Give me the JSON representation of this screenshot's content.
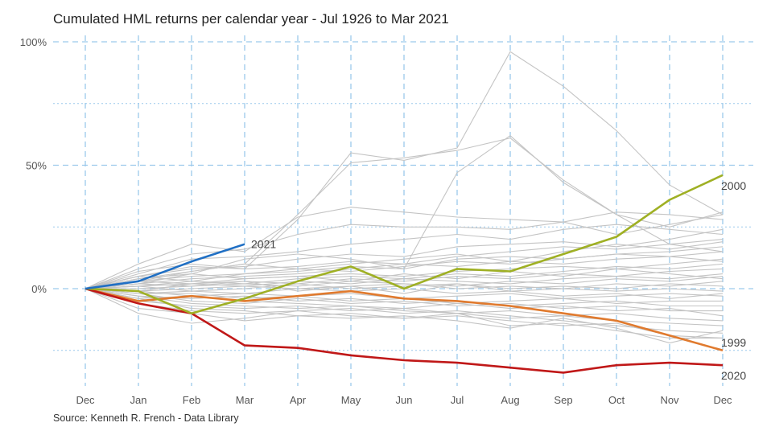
{
  "title": "Cumulated HML returns per calendar year - Jul 1926 to Mar 2021",
  "source": "Source: Kenneth R. French - Data Library",
  "colors": {
    "background_series": "#c4c4c4",
    "grid": "#9cc9ec",
    "s2021": "#1f6fc4",
    "s2000": "#9fb024",
    "s1999": "#e07a2e",
    "s2020": "#c01818"
  },
  "chart_data": {
    "type": "line",
    "title": "Cumulated HML returns per calendar year - Jul 1926 to Mar 2021",
    "xlabel": "",
    "ylabel": "",
    "categories": [
      "Dec",
      "Jan",
      "Feb",
      "Mar",
      "Apr",
      "May",
      "Jun",
      "Jul",
      "Aug",
      "Sep",
      "Oct",
      "Nov",
      "Dec"
    ],
    "ylim": [
      -0.4,
      1.02
    ],
    "yticks": [
      0,
      0.5,
      1.0
    ],
    "ytick_labels": [
      "0%",
      "50%",
      "100%"
    ],
    "grid": true,
    "highlighted_series": [
      {
        "name": "2021",
        "color": "#1f6fc4",
        "values": [
          0,
          0.03,
          0.11,
          0.18
        ]
      },
      {
        "name": "2000",
        "color": "#9fb024",
        "values": [
          0,
          -0.01,
          -0.1,
          -0.04,
          0.03,
          0.09,
          0.0,
          0.08,
          0.07,
          0.14,
          0.21,
          0.36,
          0.46
        ]
      },
      {
        "name": "1999",
        "color": "#e07a2e",
        "values": [
          0,
          -0.05,
          -0.03,
          -0.05,
          -0.03,
          -0.01,
          -0.04,
          -0.05,
          -0.07,
          -0.1,
          -0.13,
          -0.19,
          -0.25
        ]
      },
      {
        "name": "2020",
        "color": "#c01818",
        "values": [
          0,
          -0.06,
          -0.1,
          -0.23,
          -0.24,
          -0.27,
          -0.29,
          -0.3,
          -0.32,
          -0.34,
          -0.31,
          -0.3,
          -0.31
        ]
      }
    ],
    "background_series": [
      {
        "values": [
          0,
          0.05,
          0.09,
          0.08,
          0.28,
          0.55,
          0.52,
          0.57,
          0.96,
          0.82,
          0.64,
          0.42,
          0.3
        ]
      },
      {
        "values": [
          0,
          0.03,
          0.07,
          0.1,
          0.3,
          0.51,
          0.53,
          0.56,
          0.61,
          0.44,
          0.3,
          0.25,
          0.31
        ]
      },
      {
        "values": [
          0,
          0.04,
          0.06,
          0.12,
          0.14,
          0.12,
          0.08,
          0.47,
          0.62,
          0.43,
          0.3,
          0.18,
          0.15
        ]
      },
      {
        "values": [
          0,
          0.1,
          0.18,
          0.15,
          0.29,
          0.33,
          0.31,
          0.29,
          0.28,
          0.27,
          0.31,
          0.3,
          0.28
        ]
      },
      {
        "values": [
          0,
          0.08,
          0.14,
          0.16,
          0.22,
          0.26,
          0.25,
          0.25,
          0.24,
          0.27,
          0.22,
          0.26,
          0.3
        ]
      },
      {
        "values": [
          0,
          0.06,
          0.12,
          0.13,
          0.15,
          0.18,
          0.2,
          0.22,
          0.2,
          0.24,
          0.26,
          0.24,
          0.22
        ]
      },
      {
        "values": [
          0,
          0.05,
          0.08,
          0.09,
          0.12,
          0.14,
          0.13,
          0.17,
          0.18,
          0.19,
          0.17,
          0.2,
          0.24
        ]
      },
      {
        "values": [
          0,
          0.04,
          0.07,
          0.1,
          0.08,
          0.1,
          0.12,
          0.14,
          0.11,
          0.15,
          0.18,
          0.16,
          0.19
        ]
      },
      {
        "values": [
          0,
          0.03,
          0.05,
          0.06,
          0.07,
          0.09,
          0.08,
          0.12,
          0.13,
          0.12,
          0.14,
          0.15,
          0.17
        ]
      },
      {
        "values": [
          0,
          0.02,
          0.04,
          0.05,
          0.06,
          0.08,
          0.1,
          0.09,
          0.11,
          0.1,
          0.12,
          0.13,
          0.15
        ]
      },
      {
        "values": [
          0,
          0.03,
          0.02,
          0.04,
          0.05,
          0.06,
          0.05,
          0.07,
          0.08,
          0.09,
          0.08,
          0.1,
          0.12
        ]
      },
      {
        "values": [
          0,
          0.01,
          0.03,
          0.02,
          0.04,
          0.05,
          0.04,
          0.06,
          0.05,
          0.07,
          0.09,
          0.08,
          0.1
        ]
      },
      {
        "values": [
          0,
          0.02,
          0.01,
          0.03,
          0.02,
          0.04,
          0.03,
          0.05,
          0.04,
          0.06,
          0.05,
          0.07,
          0.08
        ]
      },
      {
        "values": [
          0,
          0.01,
          0.02,
          0.01,
          0.03,
          0.02,
          0.04,
          0.03,
          0.02,
          0.04,
          0.05,
          0.04,
          0.06
        ]
      },
      {
        "values": [
          0,
          0.0,
          0.01,
          0.02,
          0.01,
          0.03,
          0.02,
          0.01,
          0.03,
          0.02,
          0.04,
          0.03,
          0.05
        ]
      },
      {
        "values": [
          0,
          -0.01,
          0.0,
          0.01,
          0.0,
          0.01,
          0.02,
          0.0,
          0.01,
          0.0,
          0.02,
          0.01,
          0.03
        ]
      },
      {
        "values": [
          0,
          0.01,
          -0.01,
          0.0,
          0.02,
          0.0,
          0.01,
          0.02,
          0.0,
          0.01,
          0.0,
          0.02,
          0.01
        ]
      },
      {
        "values": [
          0,
          -0.02,
          -0.01,
          -0.02,
          0.0,
          -0.01,
          0.0,
          -0.02,
          -0.01,
          0.0,
          -0.01,
          0.0,
          -0.01
        ]
      },
      {
        "values": [
          0,
          -0.01,
          -0.03,
          -0.02,
          -0.03,
          -0.02,
          -0.04,
          -0.03,
          -0.02,
          -0.04,
          -0.03,
          -0.02,
          -0.03
        ]
      },
      {
        "values": [
          0,
          -0.02,
          -0.02,
          -0.04,
          -0.03,
          -0.05,
          -0.04,
          -0.06,
          -0.05,
          -0.04,
          -0.06,
          -0.05,
          -0.05
        ]
      },
      {
        "values": [
          0,
          -0.03,
          -0.04,
          -0.03,
          -0.05,
          -0.04,
          -0.06,
          -0.05,
          -0.07,
          -0.06,
          -0.05,
          -0.07,
          -0.07
        ]
      },
      {
        "values": [
          0,
          -0.02,
          -0.05,
          -0.06,
          -0.04,
          -0.06,
          -0.05,
          -0.07,
          -0.06,
          -0.08,
          -0.07,
          -0.09,
          -0.09
        ]
      },
      {
        "values": [
          0,
          -0.04,
          -0.03,
          -0.05,
          -0.06,
          -0.07,
          -0.08,
          -0.06,
          -0.08,
          -0.07,
          -0.09,
          -0.08,
          -0.11
        ]
      },
      {
        "values": [
          0,
          -0.03,
          -0.06,
          -0.07,
          -0.08,
          -0.07,
          -0.09,
          -0.1,
          -0.09,
          -0.11,
          -0.1,
          -0.12,
          -0.13
        ]
      },
      {
        "values": [
          0,
          -0.05,
          -0.07,
          -0.08,
          -0.07,
          -0.09,
          -0.08,
          -0.1,
          -0.12,
          -0.11,
          -0.13,
          -0.14,
          -0.15
        ]
      },
      {
        "values": [
          0,
          -0.06,
          -0.09,
          -0.1,
          -0.09,
          -0.08,
          -0.1,
          -0.09,
          -0.11,
          -0.13,
          -0.15,
          -0.17,
          -0.18
        ]
      },
      {
        "values": [
          0,
          -0.04,
          -0.08,
          -0.09,
          -0.11,
          -0.1,
          -0.12,
          -0.11,
          -0.13,
          -0.15,
          -0.14,
          -0.19,
          -0.2
        ]
      },
      {
        "values": [
          0,
          -0.08,
          -0.1,
          -0.13,
          -0.11,
          -0.12,
          -0.11,
          -0.13,
          -0.16,
          -0.12,
          -0.16,
          -0.22,
          -0.17
        ]
      },
      {
        "values": [
          0,
          -0.1,
          -0.14,
          -0.12,
          -0.09,
          -0.11,
          -0.12,
          -0.1,
          -0.15,
          -0.14,
          -0.17,
          -0.2,
          -0.2
        ]
      },
      {
        "values": [
          0,
          0.07,
          0.1,
          0.08,
          0.09,
          0.11,
          0.1,
          0.13,
          0.15,
          0.17,
          0.16,
          0.18,
          0.2
        ]
      },
      {
        "values": [
          0,
          0.05,
          0.03,
          0.06,
          0.08,
          0.07,
          0.09,
          0.11,
          0.1,
          0.12,
          0.14,
          0.13,
          0.11
        ]
      },
      {
        "values": [
          0,
          0.02,
          0.06,
          0.04,
          0.05,
          0.03,
          0.06,
          0.04,
          0.07,
          0.05,
          0.08,
          0.06,
          0.04
        ]
      },
      {
        "values": [
          0,
          -0.01,
          0.02,
          0.03,
          -0.01,
          0.01,
          -0.02,
          0.02,
          -0.01,
          -0.03,
          -0.02,
          -0.04,
          -0.02
        ]
      }
    ],
    "series_labels": [
      "2021",
      "2000",
      "1999",
      "2020"
    ]
  }
}
